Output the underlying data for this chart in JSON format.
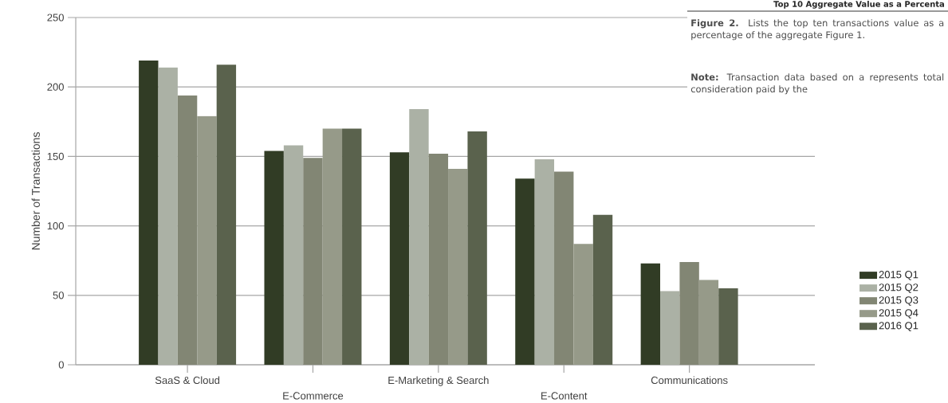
{
  "chart_data": {
    "type": "bar",
    "ylabel": "Number of Transactions",
    "categories": [
      "SaaS & Cloud",
      "E-Commerce",
      "E-Marketing & Search",
      "E-Content",
      "Communications"
    ],
    "series": [
      {
        "name": "2015 Q1",
        "color": "#313c25",
        "values": [
          219,
          154,
          153,
          134,
          73
        ]
      },
      {
        "name": "2015 Q2",
        "color": "#abb1a5",
        "values": [
          214,
          158,
          184,
          148,
          53
        ]
      },
      {
        "name": "2015 Q3",
        "color": "#828674",
        "values": [
          194,
          149,
          152,
          139,
          74
        ]
      },
      {
        "name": "2015 Q4",
        "color": "#969a89",
        "values": [
          179,
          170,
          141,
          87,
          61
        ]
      },
      {
        "name": "2016 Q1",
        "color": "#5a624d",
        "values": [
          216,
          170,
          168,
          108,
          55
        ]
      }
    ],
    "ylim": [
      0,
      250
    ],
    "yticks": [
      0,
      50,
      100,
      150,
      200,
      250
    ],
    "grid": "y",
    "legend": "right",
    "annotations": [
      "**Top 10 Aggregate Value as a Percenta**",
      "**Figure 2.** Lists the top ten transactions value as a percentage of the aggregate Figure 1.",
      "**Note:** Transaction data based on a represents total consideration paid by the"
    ]
  }
}
